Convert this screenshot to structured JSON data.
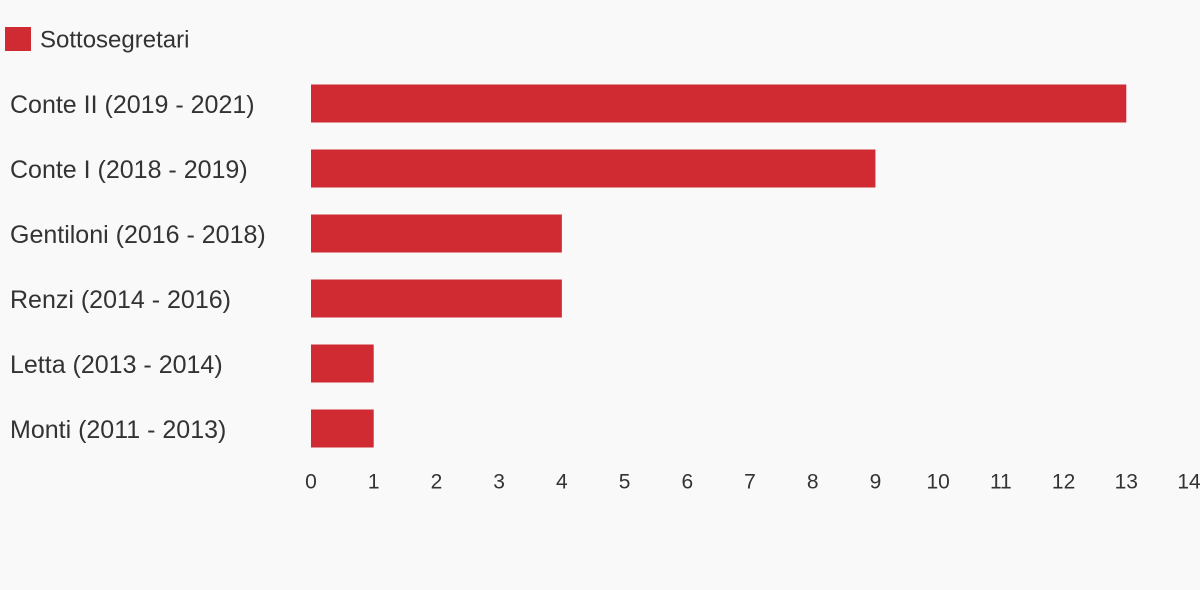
{
  "chart_data": {
    "type": "bar",
    "categories": [
      "Conte II (2019 - 2021)",
      "Conte I (2018 - 2019)",
      "Gentiloni (2016 - 2018)",
      "Renzi (2014 - 2016)",
      "Letta (2013 - 2014)",
      "Monti (2011 - 2013)"
    ],
    "series": [
      {
        "name": "Sottosegretari",
        "color": "#d02b33",
        "values": [
          13,
          9,
          4,
          4,
          1,
          1
        ]
      }
    ],
    "xlim": [
      0,
      14
    ],
    "xticks": [
      0,
      1,
      2,
      3,
      4,
      5,
      6,
      7,
      8,
      9,
      10,
      11,
      12,
      13,
      14
    ],
    "legend": "top-left",
    "grid": false
  }
}
